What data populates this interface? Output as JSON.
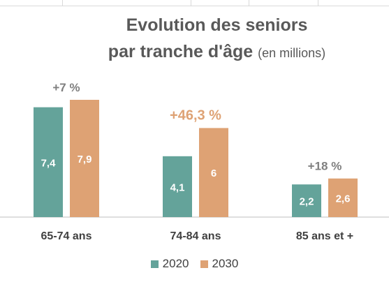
{
  "colors": {
    "series_2020": "#64a39a",
    "series_2030": "#dea274",
    "title": "#595959",
    "annotation_default": "#7f7f7f",
    "annotation_highlight": "#dea274",
    "axis": "#bfbfbf"
  },
  "chart_data": {
    "type": "bar",
    "title_line1": "Evolution des seniors",
    "title_line2": "par tranche d'âge",
    "title_unit": "(en millions)",
    "categories": [
      "65-74 ans",
      "74-84 ans",
      "85 ans et +"
    ],
    "series": [
      {
        "name": "2020",
        "values": [
          7.4,
          4.1,
          2.2
        ],
        "labels": [
          "7,4",
          "4,1",
          "2,2"
        ]
      },
      {
        "name": "2030",
        "values": [
          7.9,
          6,
          2.6
        ],
        "labels": [
          "7,9",
          "6",
          "2,6"
        ]
      }
    ],
    "annotations": [
      {
        "text": "+7 %",
        "highlight": false
      },
      {
        "text": "+46,3 %",
        "highlight": true
      },
      {
        "text": "+18 %",
        "highlight": false
      }
    ],
    "ylim": [
      0,
      8.5
    ],
    "legend_position": "bottom",
    "grid": false
  }
}
